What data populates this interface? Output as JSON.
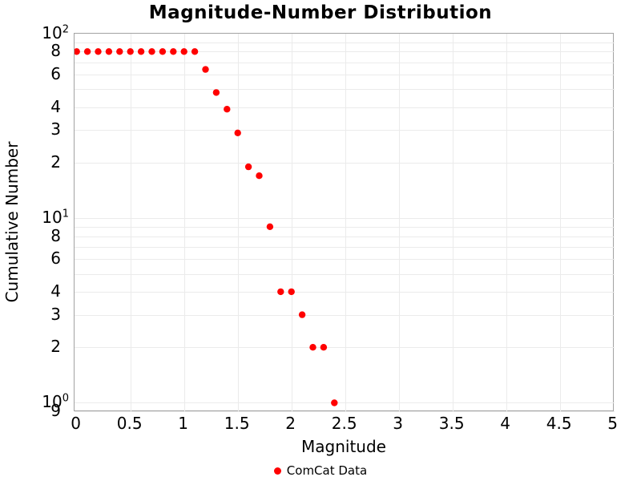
{
  "title": "Magnitude-Number Distribution",
  "chart_data": {
    "type": "scatter",
    "title": "Magnitude-Number Distribution",
    "xlabel": "Magnitude",
    "ylabel": "Cumulative Number",
    "x_axis": {
      "range": [
        -0.02,
        5.01
      ],
      "tick_values": [
        0,
        0.5,
        1,
        1.5,
        2,
        2.5,
        3,
        3.5,
        4,
        4.5,
        5
      ],
      "tick_labels": [
        "0",
        "0.5",
        "1",
        "1.5",
        "2",
        "2.5",
        "3",
        "3.5",
        "4",
        "4.5",
        "5"
      ],
      "gridline_values": [
        0.5,
        1,
        1.5,
        2,
        2.5,
        3,
        3.5,
        4,
        4.5
      ]
    },
    "y_axis": {
      "scale": "log",
      "range_log10": [
        -0.05,
        2.0
      ],
      "ticks": [
        {
          "label": "10",
          "sup": "2",
          "value": 100
        },
        {
          "label": "8",
          "value": 80
        },
        {
          "label": "6",
          "value": 60
        },
        {
          "label": "4",
          "value": 40
        },
        {
          "label": "3",
          "value": 30
        },
        {
          "label": "2",
          "value": 20
        },
        {
          "label": "10",
          "sup": "1",
          "value": 10
        },
        {
          "label": "8",
          "value": 8
        },
        {
          "label": "6",
          "value": 6
        },
        {
          "label": "4",
          "value": 4
        },
        {
          "label": "3",
          "value": 3
        },
        {
          "label": "2",
          "value": 2
        },
        {
          "label": "10",
          "sup": "0",
          "value": 1
        },
        {
          "label": "9",
          "value": 0.9
        }
      ],
      "gridline_values": [
        90,
        80,
        70,
        60,
        50,
        40,
        30,
        20,
        10,
        9,
        8,
        7,
        6,
        5,
        4,
        3,
        2,
        1,
        0.9
      ]
    },
    "grid": true,
    "legend_position": "bottom-center",
    "legend": [
      {
        "label": "ComCat Data",
        "color": "#ff0000"
      }
    ],
    "series": [
      {
        "name": "ComCat Data",
        "color": "#ff0000",
        "marker": "circle",
        "marker_radius_px": 4.2,
        "x": [
          0.0,
          0.1,
          0.2,
          0.3,
          0.4,
          0.5,
          0.6,
          0.7,
          0.8,
          0.9,
          1.0,
          1.1,
          1.2,
          1.3,
          1.4,
          1.5,
          1.6,
          1.7,
          1.8,
          1.9,
          2.0,
          2.1,
          2.2,
          2.3,
          2.4
        ],
        "y": [
          80,
          80,
          80,
          80,
          80,
          80,
          80,
          80,
          80,
          80,
          80,
          80,
          64,
          48,
          39,
          29,
          19,
          17,
          9,
          4,
          4,
          3,
          2,
          2,
          1
        ]
      }
    ]
  },
  "colors": {
    "marker": "#ff0000",
    "gridline": "#ebebeb",
    "frame": "#a2a2a2",
    "text": "#000000",
    "background": "#ffffff"
  }
}
